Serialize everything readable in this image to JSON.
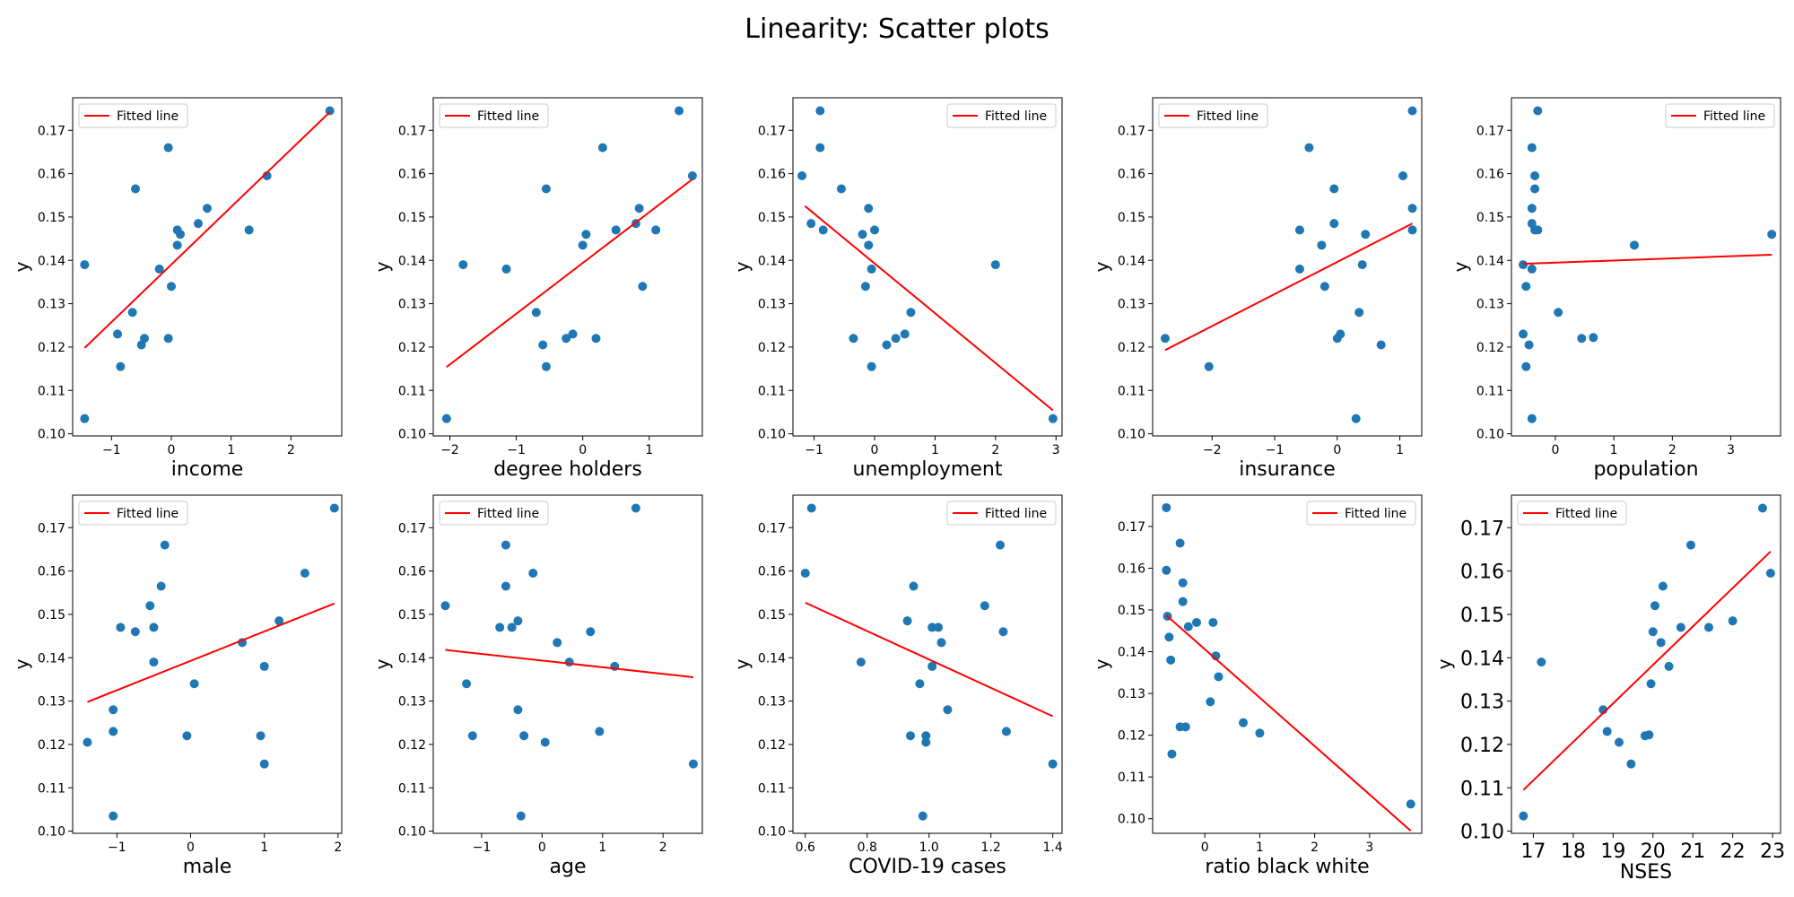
{
  "title": "Linearity: Scatter plots",
  "colors": {
    "points": "#1f77b4",
    "fit": "#ff0000",
    "frame": "#000000"
  },
  "chart_data": [
    {
      "type": "scatter",
      "xlabel": "income",
      "ylabel": "y",
      "legend": "Fitted line",
      "legend_loc": "top-left",
      "xlim": [
        -1.65,
        2.85
      ],
      "ylim": [
        0.0995,
        0.1775
      ],
      "xticks": [
        -1,
        0,
        1,
        2
      ],
      "yticks": [
        0.1,
        0.11,
        0.12,
        0.13,
        0.14,
        0.15,
        0.16,
        0.17
      ],
      "x": [
        -1.45,
        -1.45,
        -0.9,
        -0.85,
        -0.65,
        -0.6,
        -0.5,
        -0.45,
        -0.2,
        -0.05,
        -0.05,
        0.0,
        0.1,
        0.1,
        0.15,
        0.45,
        0.6,
        1.3,
        1.6,
        2.65
      ],
      "y": [
        0.139,
        0.1035,
        0.123,
        0.1155,
        0.128,
        0.1565,
        0.1205,
        0.122,
        0.138,
        0.166,
        0.122,
        0.134,
        0.147,
        0.1435,
        0.146,
        0.1485,
        0.152,
        0.147,
        0.1595,
        0.1745
      ],
      "fit": {
        "x": [
          -1.45,
          2.65
        ],
        "y": [
          0.1198,
          0.1742
        ]
      }
    },
    {
      "type": "scatter",
      "xlabel": "degree holders",
      "ylabel": "y",
      "legend": "Fitted line",
      "legend_loc": "top-left",
      "xlim": [
        -2.25,
        1.8
      ],
      "ylim": [
        0.0995,
        0.1775
      ],
      "xticks": [
        -2,
        -1,
        0,
        1
      ],
      "yticks": [
        0.1,
        0.11,
        0.12,
        0.13,
        0.14,
        0.15,
        0.16,
        0.17
      ],
      "x": [
        -2.05,
        -1.8,
        -1.15,
        -0.7,
        -0.6,
        -0.55,
        -0.55,
        -0.25,
        -0.15,
        0.0,
        0.05,
        0.2,
        0.3,
        0.5,
        0.8,
        0.85,
        0.9,
        1.1,
        1.45,
        1.65
      ],
      "y": [
        0.1035,
        0.139,
        0.138,
        0.128,
        0.1205,
        0.1155,
        0.1565,
        0.122,
        0.123,
        0.1435,
        0.146,
        0.122,
        0.166,
        0.147,
        0.1485,
        0.152,
        0.134,
        0.147,
        0.1745,
        0.1595
      ],
      "fit": {
        "x": [
          -2.05,
          1.65
        ],
        "y": [
          0.1154,
          0.1587
        ]
      }
    },
    {
      "type": "scatter",
      "xlabel": "unemployment",
      "ylabel": "y",
      "legend": "Fitted line",
      "legend_loc": "top-right",
      "xlim": [
        -1.35,
        3.1
      ],
      "ylim": [
        0.0995,
        0.1775
      ],
      "xticks": [
        -1,
        0,
        1,
        2,
        3
      ],
      "yticks": [
        0.1,
        0.11,
        0.12,
        0.13,
        0.14,
        0.15,
        0.16,
        0.17
      ],
      "x": [
        -1.2,
        -1.05,
        -0.9,
        -0.9,
        -0.85,
        -0.55,
        -0.35,
        -0.2,
        -0.15,
        -0.1,
        -0.1,
        -0.05,
        0.0,
        0.2,
        0.35,
        0.5,
        0.6,
        2.0,
        2.95,
        -0.05
      ],
      "y": [
        0.1595,
        0.1485,
        0.166,
        0.1745,
        0.147,
        0.1565,
        0.122,
        0.146,
        0.134,
        0.152,
        0.1435,
        0.138,
        0.147,
        0.1205,
        0.122,
        0.123,
        0.128,
        0.139,
        0.1035,
        0.1155
      ],
      "fit": {
        "x": [
          -1.15,
          2.95
        ],
        "y": [
          0.1525,
          0.1054
        ]
      }
    },
    {
      "type": "scatter",
      "xlabel": "insurance",
      "ylabel": "y",
      "legend": "Fitted line",
      "legend_loc": "top-left",
      "xlim": [
        -2.95,
        1.35
      ],
      "ylim": [
        0.0995,
        0.1775
      ],
      "xticks": [
        -2,
        -1,
        0,
        1
      ],
      "yticks": [
        0.1,
        0.11,
        0.12,
        0.13,
        0.14,
        0.15,
        0.16,
        0.17
      ],
      "x": [
        -2.75,
        -2.05,
        -0.6,
        -0.6,
        -0.45,
        -0.25,
        -0.2,
        -0.05,
        -0.05,
        0.0,
        0.05,
        0.3,
        0.35,
        0.4,
        0.45,
        0.7,
        1.05,
        1.2,
        1.2,
        1.2
      ],
      "y": [
        0.122,
        0.1155,
        0.147,
        0.138,
        0.166,
        0.1435,
        0.134,
        0.1565,
        0.1485,
        0.122,
        0.123,
        0.1035,
        0.128,
        0.139,
        0.146,
        0.1205,
        0.1595,
        0.1745,
        0.152,
        0.147
      ],
      "fit": {
        "x": [
          -2.75,
          1.2
        ],
        "y": [
          0.1193,
          0.1485
        ]
      }
    },
    {
      "type": "scatter",
      "xlabel": "population",
      "ylabel": "y",
      "legend": "Fitted line",
      "legend_loc": "top-right",
      "xlim": [
        -0.75,
        3.85
      ],
      "ylim": [
        0.0995,
        0.1775
      ],
      "xticks": [
        0,
        1,
        2,
        3
      ],
      "yticks": [
        0.1,
        0.11,
        0.12,
        0.13,
        0.14,
        0.15,
        0.16,
        0.17
      ],
      "x": [
        -0.55,
        -0.55,
        -0.5,
        -0.5,
        -0.45,
        -0.4,
        -0.4,
        -0.4,
        -0.4,
        -0.4,
        -0.35,
        -0.35,
        -0.35,
        -0.3,
        -0.3,
        0.05,
        0.45,
        0.65,
        1.35,
        3.7
      ],
      "y": [
        0.139,
        0.123,
        0.1155,
        0.134,
        0.1205,
        0.138,
        0.152,
        0.1485,
        0.1035,
        0.166,
        0.1595,
        0.147,
        0.1565,
        0.1745,
        0.147,
        0.128,
        0.122,
        0.1222,
        0.1435,
        0.146
      ],
      "fit": {
        "x": [
          -0.55,
          3.7
        ],
        "y": [
          0.1392,
          0.1413
        ]
      }
    },
    {
      "type": "scatter",
      "xlabel": "male",
      "ylabel": "y",
      "legend": "Fitted line",
      "legend_loc": "top-left",
      "xlim": [
        -1.6,
        2.05
      ],
      "ylim": [
        0.0995,
        0.1775
      ],
      "xticks": [
        -1,
        0,
        1,
        2
      ],
      "yticks": [
        0.1,
        0.11,
        0.12,
        0.13,
        0.14,
        0.15,
        0.16,
        0.17
      ],
      "x": [
        -1.4,
        -1.05,
        -1.05,
        -1.05,
        -0.95,
        -0.75,
        -0.55,
        -0.5,
        -0.5,
        -0.4,
        -0.35,
        -0.05,
        0.05,
        0.7,
        0.95,
        1.0,
        1.0,
        1.2,
        1.55,
        1.95
      ],
      "y": [
        0.1205,
        0.128,
        0.123,
        0.1035,
        0.147,
        0.146,
        0.152,
        0.147,
        0.139,
        0.1565,
        0.166,
        0.122,
        0.134,
        0.1435,
        0.122,
        0.138,
        0.1155,
        0.1485,
        0.1595,
        0.1745
      ],
      "fit": {
        "x": [
          -1.4,
          1.95
        ],
        "y": [
          0.1298,
          0.1525
        ]
      }
    },
    {
      "type": "scatter",
      "xlabel": "age",
      "ylabel": "y",
      "legend": "Fitted line",
      "legend_loc": "top-left",
      "xlim": [
        -1.8,
        2.65
      ],
      "ylim": [
        0.0995,
        0.1775
      ],
      "xticks": [
        -1,
        0,
        1,
        2
      ],
      "yticks": [
        0.1,
        0.11,
        0.12,
        0.13,
        0.14,
        0.15,
        0.16,
        0.17
      ],
      "x": [
        -1.6,
        -1.25,
        -1.15,
        -0.7,
        -0.6,
        -0.6,
        -0.5,
        -0.4,
        -0.4,
        -0.35,
        -0.3,
        -0.15,
        0.05,
        0.25,
        0.45,
        0.8,
        0.95,
        1.2,
        1.55,
        2.5
      ],
      "y": [
        0.152,
        0.134,
        0.122,
        0.147,
        0.166,
        0.1565,
        0.147,
        0.1485,
        0.128,
        0.1035,
        0.122,
        0.1595,
        0.1205,
        0.1435,
        0.139,
        0.146,
        0.123,
        0.138,
        0.1745,
        0.1155
      ],
      "fit": {
        "x": [
          -1.6,
          2.5
        ],
        "y": [
          0.1418,
          0.1355
        ]
      }
    },
    {
      "type": "scatter",
      "xlabel": "COVID-19 cases",
      "ylabel": "y",
      "legend": "Fitted line",
      "legend_loc": "top-right",
      "xlim": [
        0.56,
        1.43
      ],
      "ylim": [
        0.0995,
        0.1775
      ],
      "xticks": [
        0.6,
        0.8,
        1.0,
        1.2,
        1.4
      ],
      "yticks": [
        0.1,
        0.11,
        0.12,
        0.13,
        0.14,
        0.15,
        0.16,
        0.17
      ],
      "x": [
        0.6,
        0.62,
        0.78,
        0.93,
        0.94,
        0.95,
        0.97,
        0.98,
        0.99,
        0.99,
        1.01,
        1.01,
        1.03,
        1.04,
        1.06,
        1.18,
        1.23,
        1.24,
        1.25,
        1.4
      ],
      "y": [
        0.1595,
        0.1745,
        0.139,
        0.1485,
        0.122,
        0.1565,
        0.134,
        0.1035,
        0.122,
        0.1205,
        0.147,
        0.138,
        0.147,
        0.1435,
        0.128,
        0.152,
        0.166,
        0.146,
        0.123,
        0.1155
      ],
      "fit": {
        "x": [
          0.6,
          1.4
        ],
        "y": [
          0.1527,
          0.1265
        ]
      }
    },
    {
      "type": "scatter",
      "xlabel": "ratio black white",
      "ylabel": "y",
      "legend": "Fitted line",
      "legend_loc": "top-right",
      "xlim": [
        -0.95,
        3.95
      ],
      "ylim": [
        0.0965,
        0.1775
      ],
      "xticks": [
        0,
        1,
        2,
        3
      ],
      "yticks": [
        0.1,
        0.11,
        0.12,
        0.13,
        0.14,
        0.15,
        0.16,
        0.17
      ],
      "x": [
        -0.7,
        -0.7,
        -0.68,
        -0.65,
        -0.62,
        -0.6,
        -0.45,
        -0.45,
        -0.4,
        -0.4,
        -0.35,
        -0.3,
        -0.15,
        0.1,
        0.15,
        0.2,
        0.25,
        0.7,
        1.0,
        3.75
      ],
      "y": [
        0.1745,
        0.1595,
        0.1485,
        0.1435,
        0.138,
        0.1155,
        0.122,
        0.166,
        0.1565,
        0.152,
        0.122,
        0.146,
        0.147,
        0.128,
        0.147,
        0.139,
        0.134,
        0.123,
        0.1205,
        0.1035
      ],
      "fit": {
        "x": [
          -0.7,
          3.75
        ],
        "y": [
          0.1487,
          0.0971
        ]
      }
    },
    {
      "type": "scatter",
      "xlabel": "NSES",
      "ylabel": "y",
      "legend": "Fitted line",
      "legend_loc": "top-left",
      "xlim": [
        16.45,
        23.2
      ],
      "ylim": [
        0.0995,
        0.1775
      ],
      "xticks": [
        17,
        18,
        19,
        20,
        21,
        22,
        23
      ],
      "yticks": [
        0.1,
        0.11,
        0.12,
        0.13,
        0.14,
        0.15,
        0.16,
        0.17
      ],
      "x": [
        16.75,
        17.2,
        18.75,
        18.85,
        19.15,
        19.45,
        19.8,
        19.9,
        19.95,
        20.0,
        20.05,
        20.2,
        20.25,
        20.4,
        20.7,
        20.95,
        21.4,
        22.0,
        22.75,
        22.95
      ],
      "y": [
        0.1035,
        0.139,
        0.128,
        0.123,
        0.1205,
        0.1155,
        0.122,
        0.1222,
        0.134,
        0.146,
        0.152,
        0.1435,
        0.1565,
        0.138,
        0.147,
        0.166,
        0.147,
        0.1485,
        0.1745,
        0.1595
      ],
      "fit": {
        "x": [
          16.75,
          22.95
        ],
        "y": [
          0.1095,
          0.1645
        ]
      }
    }
  ]
}
